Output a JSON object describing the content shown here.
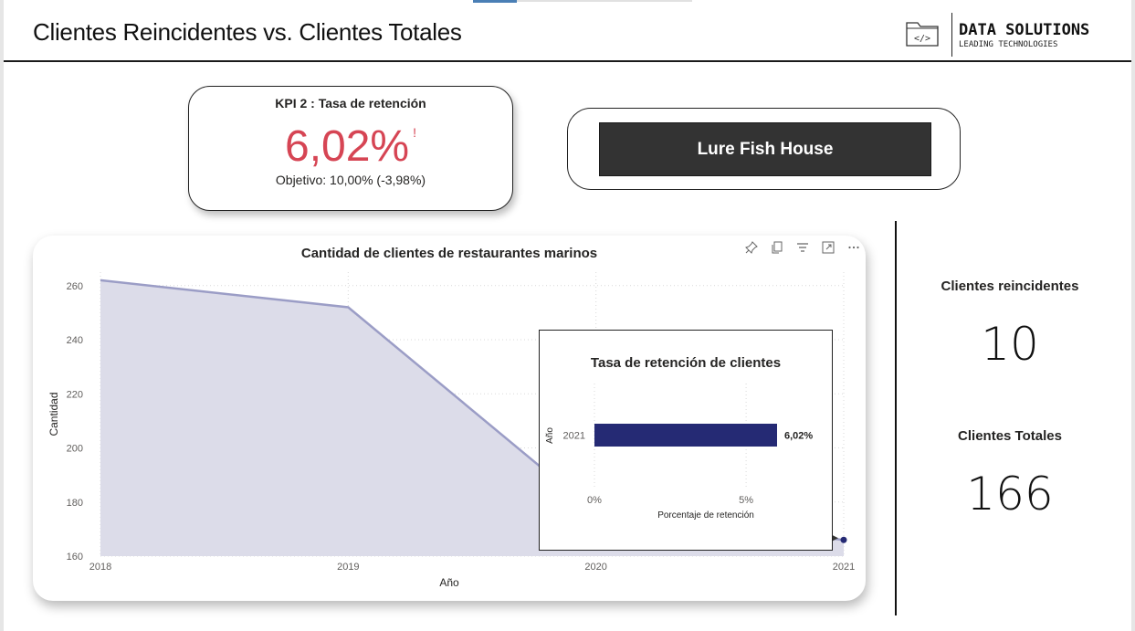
{
  "page": {
    "title": "Clientes Reincidentes vs. Clientes Totales"
  },
  "brand": {
    "name": "DATA SOLUTIONS",
    "tagline": "LEADING TECHNOLOGIES",
    "icon": "code-folder-icon"
  },
  "kpi": {
    "title": "KPI 2 : Tasa de retención",
    "value": "6,02%",
    "warning_glyph": "!",
    "target": "Objetivo: 10,00% (-3,98%)",
    "value_color": "#d64554"
  },
  "slicer": {
    "selected": "Lure Fish House"
  },
  "stats": {
    "returning_label": "Clientes reincidentes",
    "returning_value": "10",
    "total_label": "Clientes Totales",
    "total_value": "166"
  },
  "visual_header": {
    "icons": [
      "pin-icon",
      "copy-icon",
      "filter-icon",
      "focus-mode-icon",
      "more-options-icon"
    ]
  },
  "chart_data": [
    {
      "type": "area",
      "title": "Cantidad de clientes de restaurantes marinos",
      "xlabel": "Año",
      "ylabel": "Cantidad",
      "x": [
        "2018",
        "2019",
        "2020",
        "2021"
      ],
      "series": [
        {
          "values": [
            262,
            252,
            176,
            166
          ]
        }
      ],
      "y_ticks": [
        160,
        180,
        200,
        220,
        240,
        260
      ],
      "ylim": [
        160,
        265
      ],
      "grid": true,
      "color": "#9b9dc6",
      "fill": "#dcdce9"
    },
    {
      "type": "bar",
      "orientation": "horizontal",
      "title": "Tasa de retención de clientes",
      "xlabel": "Porcentaje de retención",
      "ylabel": "Año",
      "categories": [
        "2021"
      ],
      "values": [
        6.02
      ],
      "data_labels": [
        "6,02%"
      ],
      "x_ticks": [
        "0%",
        "5%"
      ],
      "xlim": [
        0,
        6.02
      ],
      "color": "#252a74",
      "grid": true
    }
  ]
}
